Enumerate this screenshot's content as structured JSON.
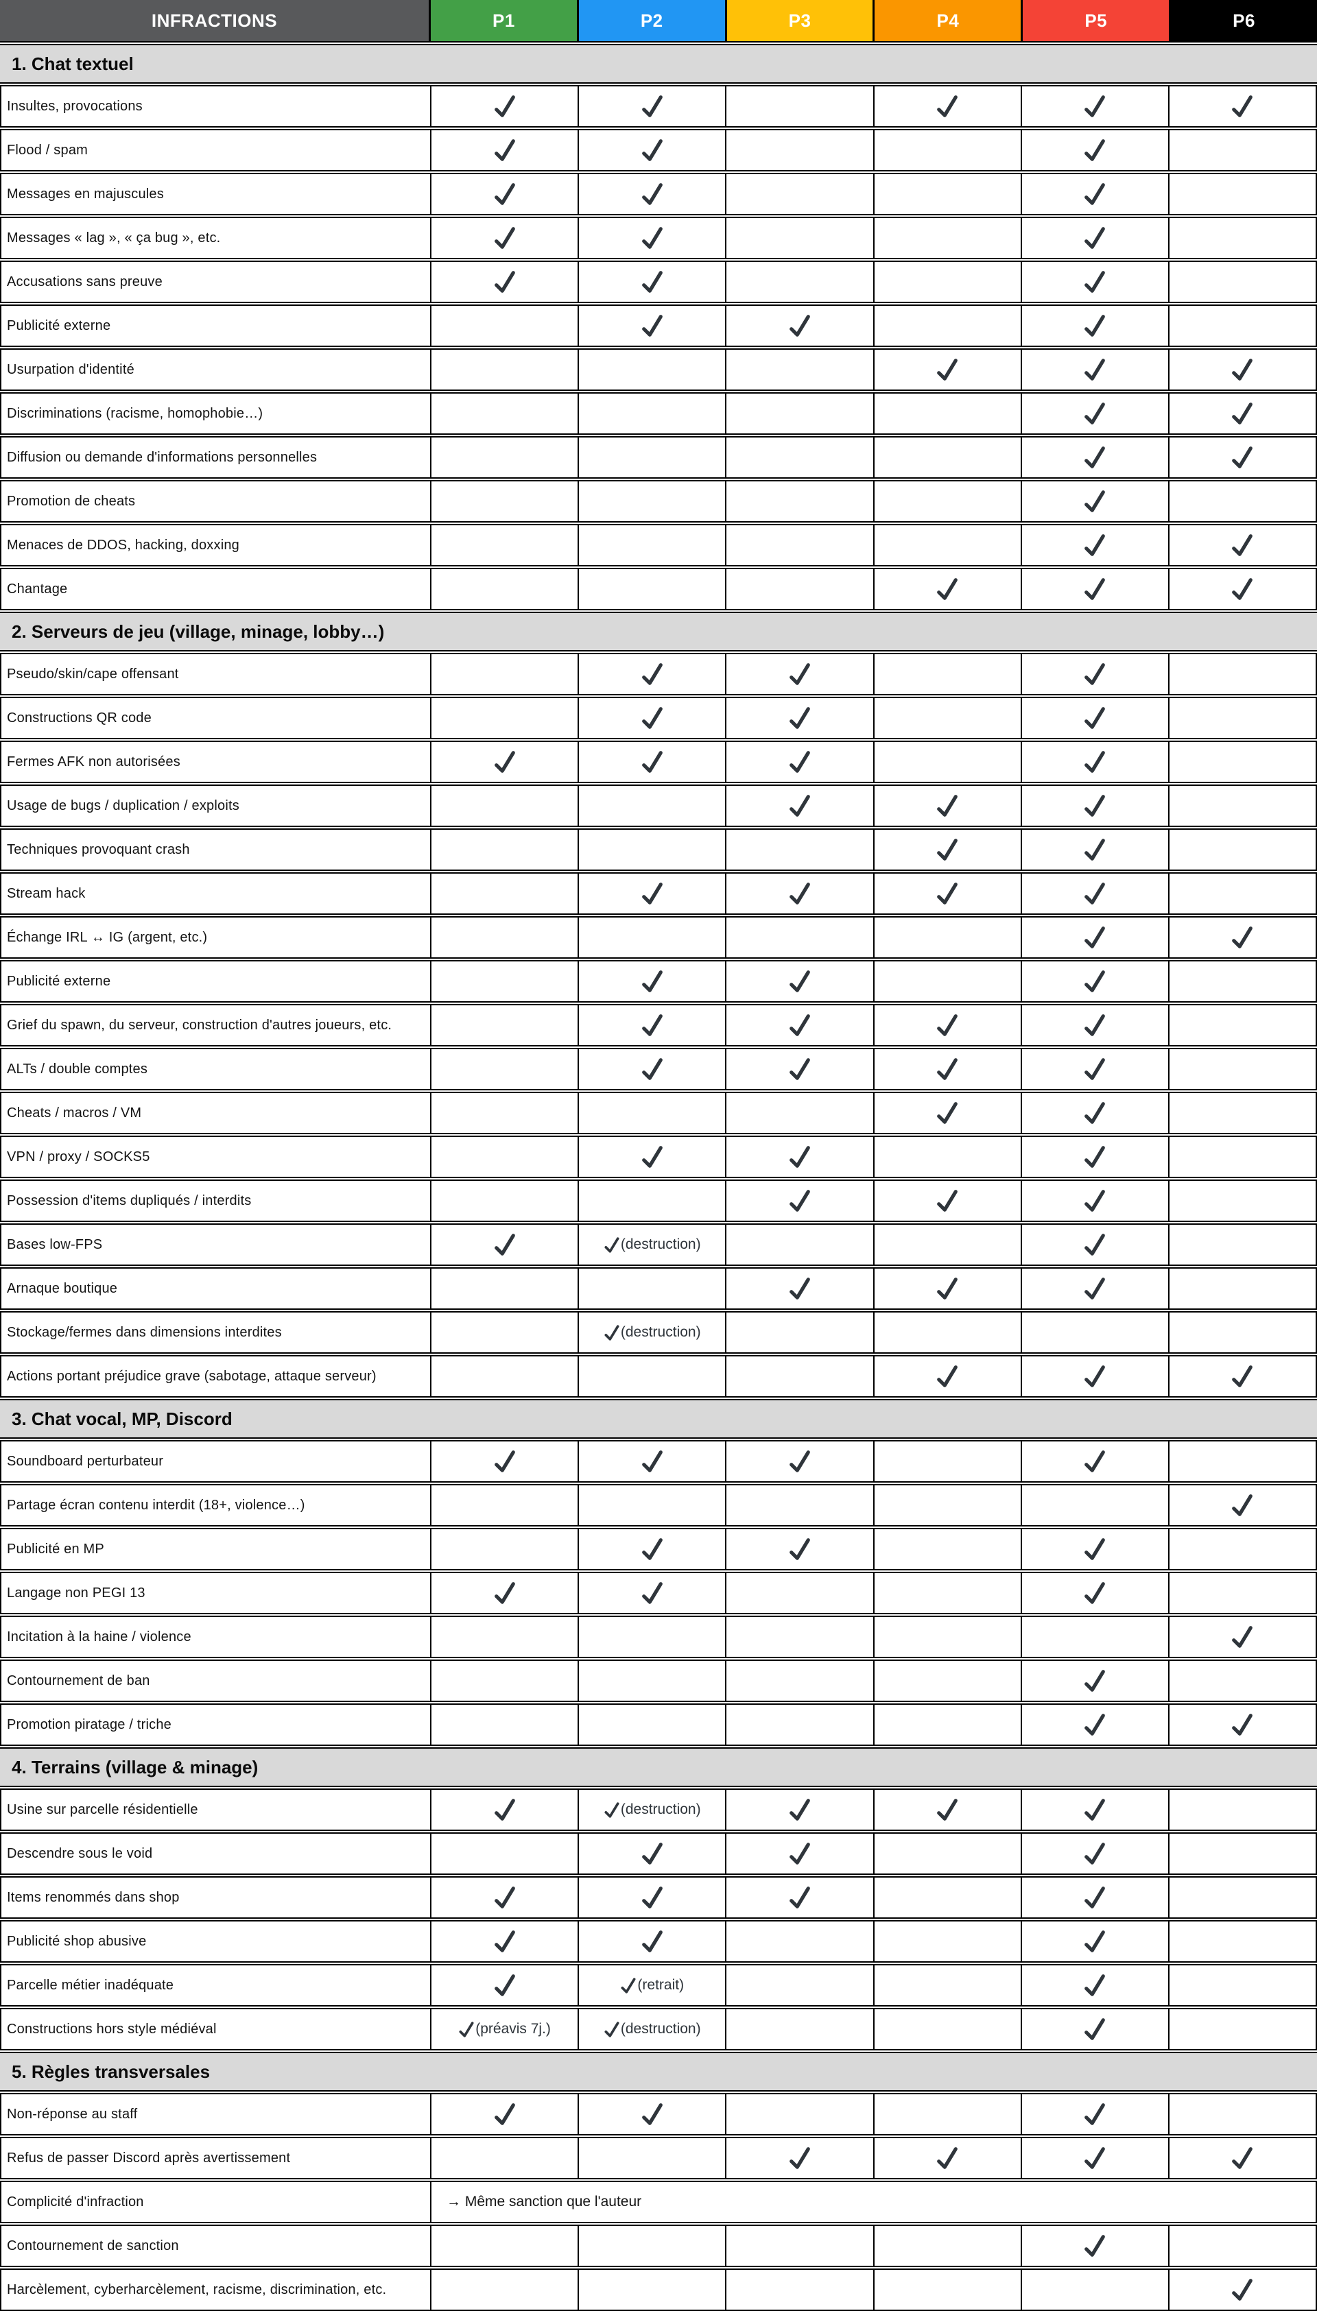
{
  "table": {
    "infractions_header": "INFRACTIONS",
    "check_symbol": "✓",
    "check_color": "#2f353b",
    "header_bg": "#58595b",
    "section_bg": "#d9d9d9",
    "columns": [
      {
        "label": "P1",
        "color": "#43a047"
      },
      {
        "label": "P2",
        "color": "#2196f3"
      },
      {
        "label": "P3",
        "color": "#ffc107"
      },
      {
        "label": "P4",
        "color": "#fa9600"
      },
      {
        "label": "P5",
        "color": "#f44336"
      },
      {
        "label": "P6",
        "color": "#000000"
      }
    ],
    "sections": [
      {
        "title": "1. Chat textuel",
        "rows": [
          {
            "label": "Insultes, provocations",
            "checks": [
              "✓",
              "✓",
              "",
              "✓",
              "✓",
              "✓"
            ]
          },
          {
            "label": "Flood / spam",
            "checks": [
              "✓",
              "✓",
              "",
              "",
              "✓",
              ""
            ]
          },
          {
            "label": "Messages en majuscules",
            "checks": [
              "✓",
              "✓",
              "",
              "",
              "✓",
              ""
            ]
          },
          {
            "label": "Messages « lag », « ça bug », etc.",
            "checks": [
              "✓",
              "✓",
              "",
              "",
              "✓",
              ""
            ]
          },
          {
            "label": "Accusations sans preuve",
            "checks": [
              "✓",
              "✓",
              "",
              "",
              "✓",
              ""
            ]
          },
          {
            "label": "Publicité externe",
            "checks": [
              "",
              "✓",
              "✓",
              "",
              "✓",
              ""
            ]
          },
          {
            "label": "Usurpation d'identité",
            "checks": [
              "",
              "",
              "",
              "✓",
              "✓",
              "✓"
            ]
          },
          {
            "label": "Discriminations (racisme, homophobie…)",
            "checks": [
              "",
              "",
              "",
              "",
              "✓",
              "✓"
            ]
          },
          {
            "label": "Diffusion ou demande d'informations personnelles",
            "checks": [
              "",
              "",
              "",
              "",
              "✓",
              "✓"
            ]
          },
          {
            "label": "Promotion de cheats",
            "checks": [
              "",
              "",
              "",
              "",
              "✓",
              ""
            ]
          },
          {
            "label": "Menaces de DDOS, hacking, doxxing",
            "checks": [
              "",
              "",
              "",
              "",
              "✓",
              "✓"
            ]
          },
          {
            "label": "Chantage",
            "checks": [
              "",
              "",
              "",
              "✓",
              "✓",
              "✓"
            ]
          }
        ]
      },
      {
        "title": "2. Serveurs de jeu (village, minage, lobby…)",
        "rows": [
          {
            "label": "Pseudo/skin/cape offensant",
            "checks": [
              "",
              "✓",
              "✓",
              "",
              "✓",
              ""
            ]
          },
          {
            "label": "Constructions QR code",
            "checks": [
              "",
              "✓",
              "✓",
              "",
              "✓",
              ""
            ]
          },
          {
            "label": "Fermes AFK non autorisées",
            "checks": [
              "✓",
              "✓",
              "✓",
              "",
              "✓",
              ""
            ]
          },
          {
            "label": "Usage de bugs / duplication / exploits",
            "checks": [
              "",
              "",
              "✓",
              "✓",
              "✓",
              ""
            ]
          },
          {
            "label": "Techniques provoquant crash",
            "checks": [
              "",
              "",
              "",
              "✓",
              "✓",
              ""
            ]
          },
          {
            "label": "Stream hack",
            "checks": [
              "",
              "✓",
              "✓",
              "✓",
              "✓",
              ""
            ]
          },
          {
            "label": "Échange IRL ↔ IG (argent, etc.)",
            "checks": [
              "",
              "",
              "",
              "",
              "✓",
              "✓"
            ]
          },
          {
            "label": "Publicité externe",
            "checks": [
              "",
              "✓",
              "✓",
              "",
              "✓",
              ""
            ]
          },
          {
            "label": "Grief du spawn, du serveur, construction d'autres joueurs, etc.",
            "checks": [
              "",
              "✓",
              "✓",
              "✓",
              "✓",
              ""
            ]
          },
          {
            "label": "ALTs / double comptes",
            "checks": [
              "",
              "✓",
              "✓",
              "✓",
              "✓",
              ""
            ]
          },
          {
            "label": "Cheats / macros / VM",
            "checks": [
              "",
              "",
              "",
              "✓",
              "✓",
              ""
            ]
          },
          {
            "label": "VPN / proxy / SOCKS5",
            "checks": [
              "",
              "✓",
              "✓",
              "",
              "✓",
              ""
            ]
          },
          {
            "label": "Possession d'items dupliqués / interdits",
            "checks": [
              "",
              "",
              "✓",
              "✓",
              "✓",
              ""
            ]
          },
          {
            "label": "Bases low-FPS",
            "checks": [
              "✓",
              "✓(destruction)",
              "",
              "",
              "✓",
              ""
            ]
          },
          {
            "label": "Arnaque boutique",
            "checks": [
              "",
              "",
              "✓",
              "✓",
              "✓",
              ""
            ]
          },
          {
            "label": "Stockage/fermes dans dimensions interdites",
            "checks": [
              "",
              "✓(destruction)",
              "",
              "",
              "",
              ""
            ]
          },
          {
            "label": "Actions portant préjudice grave (sabotage, attaque serveur)",
            "checks": [
              "",
              "",
              "",
              "✓",
              "✓",
              "✓"
            ]
          }
        ]
      },
      {
        "title": "3. Chat vocal, MP, Discord",
        "rows": [
          {
            "label": "Soundboard perturbateur",
            "checks": [
              "✓",
              "✓",
              "✓",
              "",
              "✓",
              ""
            ]
          },
          {
            "label": "Partage écran contenu interdit (18+, violence…)",
            "checks": [
              "",
              "",
              "",
              "",
              "",
              "✓"
            ]
          },
          {
            "label": "Publicité en MP",
            "checks": [
              "",
              "✓",
              "✓",
              "",
              "✓",
              ""
            ]
          },
          {
            "label": "Langage non PEGI 13",
            "checks": [
              "✓",
              "✓",
              "",
              "",
              "✓",
              ""
            ]
          },
          {
            "label": "Incitation à la haine / violence",
            "checks": [
              "",
              "",
              "",
              "",
              "",
              "✓"
            ]
          },
          {
            "label": "Contournement de ban",
            "checks": [
              "",
              "",
              "",
              "",
              "✓",
              ""
            ]
          },
          {
            "label": "Promotion piratage / triche",
            "checks": [
              "",
              "",
              "",
              "",
              "✓",
              "✓"
            ]
          }
        ]
      },
      {
        "title": "4. Terrains (village & minage)",
        "rows": [
          {
            "label": "Usine sur parcelle résidentielle",
            "checks": [
              "✓",
              "✓(destruction)",
              "✓",
              "✓",
              "✓",
              ""
            ]
          },
          {
            "label": "Descendre sous le void",
            "checks": [
              "",
              "✓",
              "✓",
              "",
              "✓",
              ""
            ]
          },
          {
            "label": "Items renommés dans shop",
            "checks": [
              "✓",
              "✓",
              "✓",
              "",
              "✓",
              ""
            ]
          },
          {
            "label": "Publicité shop abusive",
            "checks": [
              "✓",
              "✓",
              "",
              "",
              "✓",
              ""
            ]
          },
          {
            "label": "Parcelle métier inadéquate",
            "checks": [
              "✓",
              "✓(retrait)",
              "",
              "",
              "✓",
              ""
            ]
          },
          {
            "label": "Constructions hors style médiéval",
            "checks": [
              "✓(préavis 7j.)",
              "✓(destruction)",
              "",
              "",
              "✓",
              ""
            ]
          }
        ]
      },
      {
        "title": "5. Règles transversales",
        "rows": [
          {
            "label": "Non-réponse au staff",
            "checks": [
              "✓",
              "✓",
              "",
              "",
              "✓",
              ""
            ]
          },
          {
            "label": "Refus de passer Discord après avertissement",
            "checks": [
              "",
              "",
              "✓",
              "✓",
              "✓",
              "✓"
            ]
          },
          {
            "label": "Complicité d'infraction",
            "merged": "→ Même sanction que l'auteur"
          },
          {
            "label": "Contournement de sanction",
            "checks": [
              "",
              "",
              "",
              "",
              "✓",
              ""
            ]
          },
          {
            "label": "Harcèlement, cyberharcèlement, racisme, discrimination, etc.",
            "checks": [
              "",
              "",
              "",
              "",
              "",
              "✓"
            ]
          }
        ]
      }
    ]
  }
}
